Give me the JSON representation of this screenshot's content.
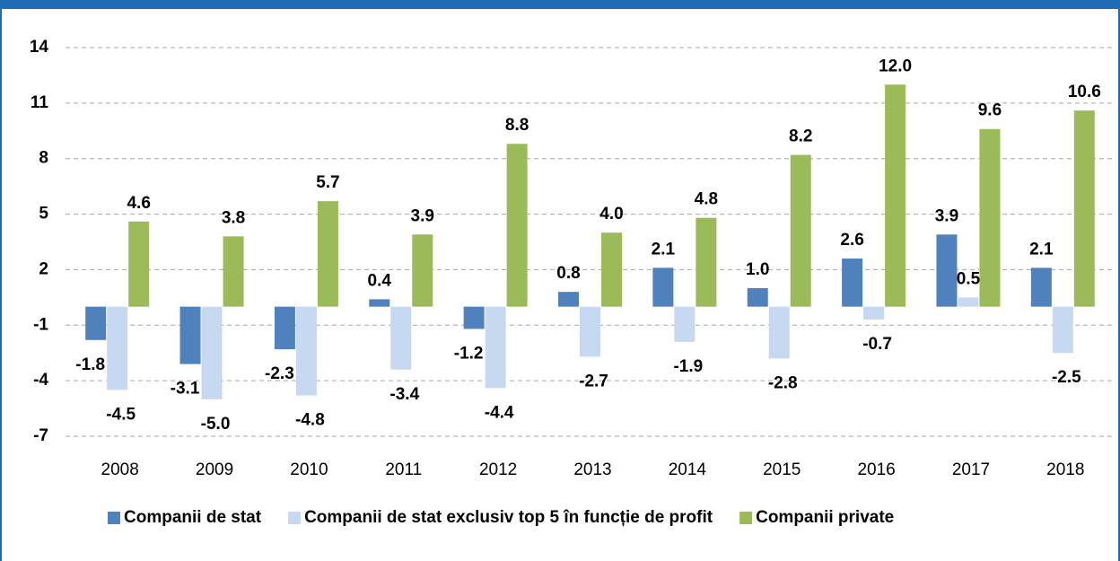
{
  "chart_data": {
    "type": "bar",
    "categories": [
      "2008",
      "2009",
      "2010",
      "2011",
      "2012",
      "2013",
      "2014",
      "2015",
      "2016",
      "2017",
      "2018"
    ],
    "series": [
      {
        "name": "Companii de stat",
        "color": "#4f81bd",
        "values": [
          -1.8,
          -3.1,
          -2.3,
          0.4,
          -1.2,
          0.8,
          2.1,
          1.0,
          2.6,
          3.9,
          2.1
        ],
        "value_labels": [
          "-1.8",
          "-3.1",
          "-2.3",
          "0.4",
          "-1.2",
          "0.8",
          "2.1",
          "1.0",
          "2.6",
          "3.9",
          "2.1"
        ]
      },
      {
        "name": "Companii de stat exclusiv top 5 în funcție de profit",
        "color": "#c6d9f1",
        "values": [
          -4.5,
          -5.0,
          -4.8,
          -3.4,
          -4.4,
          -2.7,
          -1.9,
          -2.8,
          -0.7,
          0.5,
          -2.5
        ],
        "value_labels": [
          "-4.5",
          "-5.0",
          "-4.8",
          "-3.4",
          "-4.4",
          "-2.7",
          "-1.9",
          "-2.8",
          "-0.7",
          "0.5",
          "-2.5"
        ]
      },
      {
        "name": "Companii private",
        "color": "#9bbb59",
        "values": [
          4.6,
          3.8,
          5.7,
          3.9,
          8.8,
          4.0,
          4.8,
          8.2,
          12.0,
          9.6,
          10.6
        ],
        "value_labels": [
          "4.6",
          "3.8",
          "5.7",
          "3.9",
          "8.8",
          "4.0",
          "4.8",
          "8.2",
          "12.0",
          "9.6",
          "10.6"
        ]
      }
    ],
    "ylim": [
      -7,
      14
    ],
    "yticks": [
      14,
      11,
      8,
      5,
      2,
      -1,
      -4,
      -7
    ],
    "grid": true
  }
}
